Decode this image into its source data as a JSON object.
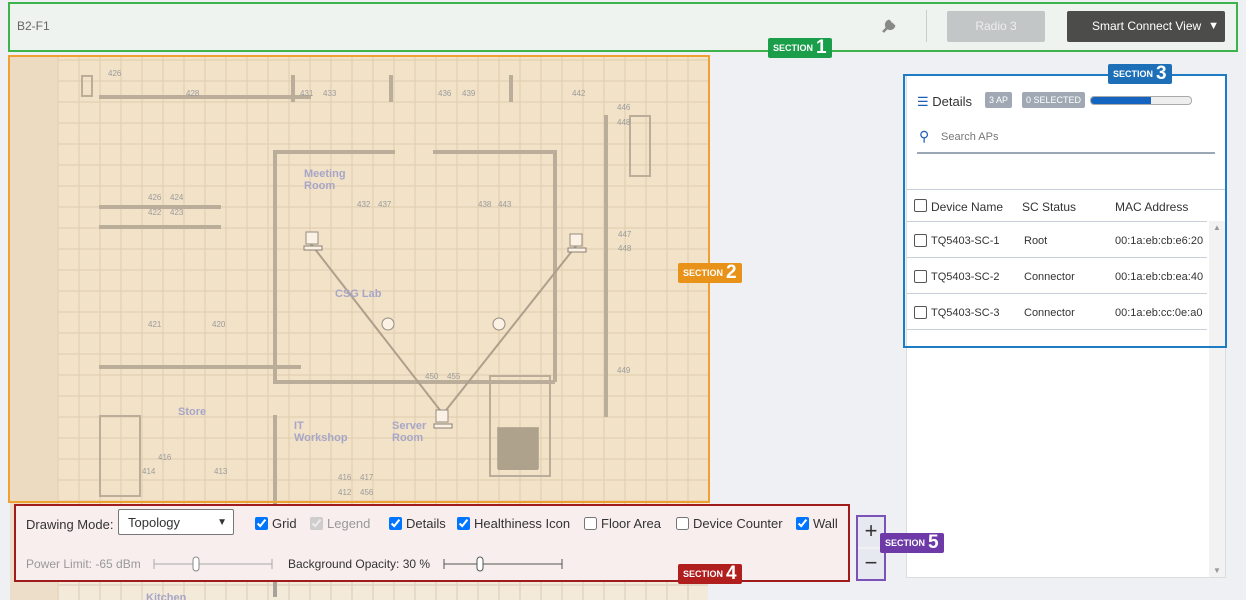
{
  "header": {
    "floor": "B2-F1",
    "radio": "Radio 3",
    "view": "Smart Connect View"
  },
  "sections": [
    {
      "label": "SECTION",
      "number": 1
    },
    {
      "label": "SECTION",
      "number": 2
    },
    {
      "label": "SECTION",
      "number": 3
    },
    {
      "label": "SECTION",
      "number": 4
    },
    {
      "label": "SECTION",
      "number": 5
    }
  ],
  "floor_plan": {
    "rooms": [
      "426",
      "428",
      "431",
      "433",
      "436",
      "439",
      "442",
      "446",
      "448",
      "Meeting Room",
      "426",
      "424",
      "422",
      "423",
      "432",
      "437",
      "438",
      "443",
      "447",
      "448",
      "CSG Lab",
      "421",
      "420",
      "450",
      "455",
      "449",
      "Store",
      "IT Workshop",
      "Server Room",
      "416",
      "414",
      "413",
      "416",
      "417",
      "412",
      "456",
      "Kitchen"
    ]
  },
  "ap_panel": {
    "title": "Details",
    "ap_count": "3 AP",
    "selected": "0 SELECTED",
    "search_placeholder": "Search APs",
    "columns": [
      "Device Name",
      "SC Status",
      "MAC Address"
    ],
    "rows": [
      [
        "TQ5403-SC-1",
        "Root",
        "00:1a:eb:cb:e6:20"
      ],
      [
        "TQ5403-SC-2",
        "Connector",
        "00:1a:eb:cb:ea:40"
      ],
      [
        "TQ5403-SC-3",
        "Connector",
        "00:1a:eb:cc:0e:a0"
      ]
    ]
  },
  "toolbar": {
    "drawing_mode_label": "Drawing Mode:",
    "drawing_mode": "Topology",
    "options": [
      {
        "label": "Grid",
        "checked": true,
        "disabled": false
      },
      {
        "label": "Legend",
        "checked": true,
        "disabled": true
      },
      {
        "label": "Details",
        "checked": true,
        "disabled": false
      },
      {
        "label": "Healthiness Icon",
        "checked": true,
        "disabled": false
      },
      {
        "label": "Floor Area",
        "checked": false,
        "disabled": false
      },
      {
        "label": "Device Counter",
        "checked": false,
        "disabled": false
      },
      {
        "label": "Wall",
        "checked": true,
        "disabled": false
      }
    ],
    "power_limit": "Power Limit: -65 dBm",
    "background_opacity": "Background Opacity: 30 %"
  },
  "zoom": {
    "in": "+",
    "out": "−"
  }
}
